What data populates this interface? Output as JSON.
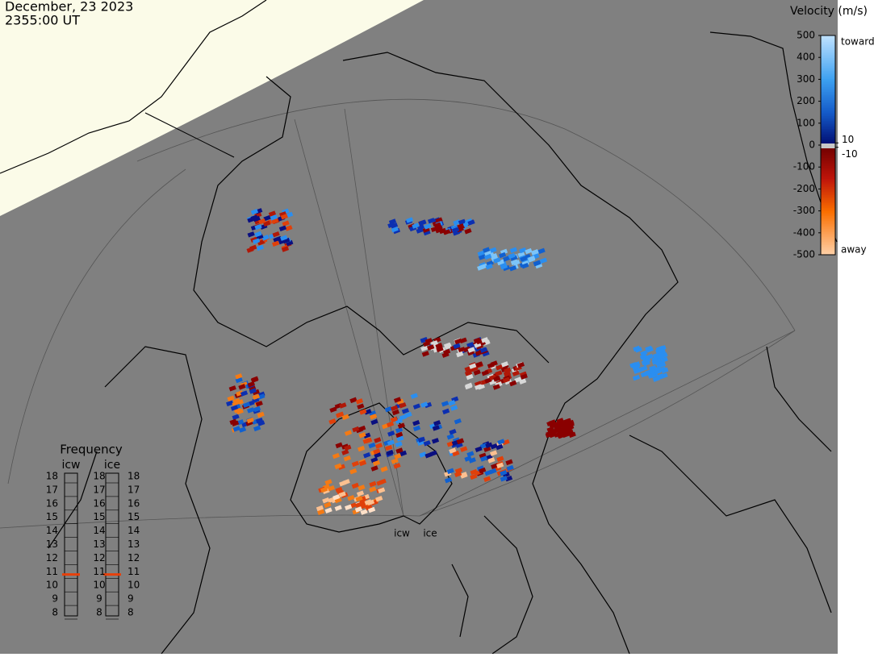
{
  "header": {
    "date": "December, 23 2023",
    "time": "2355:00 UT"
  },
  "velocity_scale": {
    "title": "Velocity (m/s)",
    "ticks": [
      500,
      400,
      300,
      200,
      100,
      0,
      -100,
      -200,
      -300,
      -400,
      -500
    ],
    "inner_ticks": [
      10,
      -10
    ],
    "top_label": "toward",
    "bottom_label": "away"
  },
  "frequency": {
    "title": "Frequency",
    "ticks": [
      18,
      17,
      16,
      15,
      14,
      13,
      12,
      11,
      10,
      9,
      8
    ],
    "radars": [
      {
        "name": "icw",
        "value": 10.8
      },
      {
        "name": "ice",
        "value": 10.8
      }
    ]
  },
  "radar_sites": [
    "icw",
    "ice"
  ]
}
